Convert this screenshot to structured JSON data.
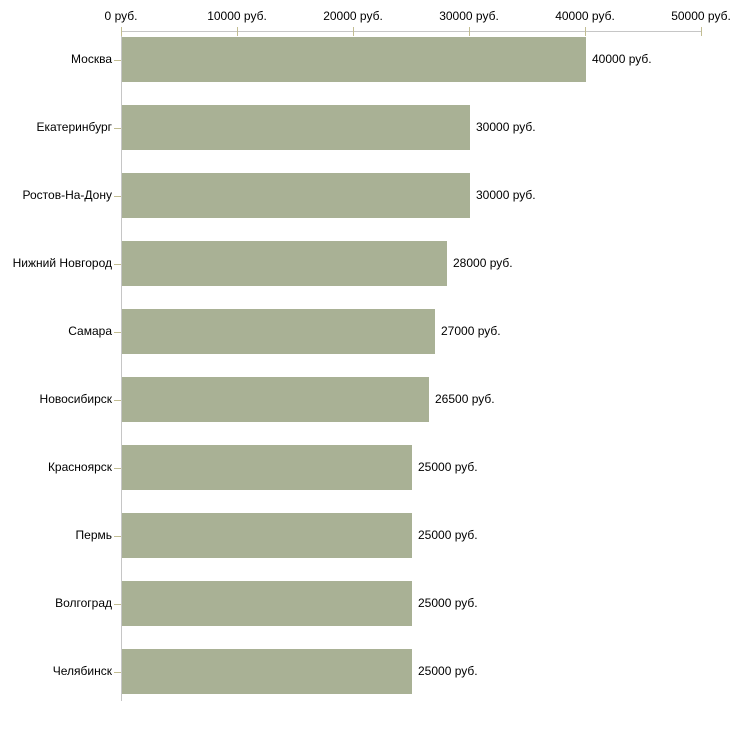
{
  "chart_data": {
    "type": "bar",
    "orientation": "horizontal",
    "title": "",
    "categories": [
      "Москва",
      "Екатеринбург",
      "Ростов-На-Дону",
      "Нижний Новгород",
      "Самара",
      "Новосибирск",
      "Красноярск",
      "Пермь",
      "Волгоград",
      "Челябинск"
    ],
    "values": [
      40000,
      30000,
      30000,
      28000,
      27000,
      26500,
      25000,
      25000,
      25000,
      25000
    ],
    "value_labels": [
      "40000 руб.",
      "30000 руб.",
      "30000 руб.",
      "28000 руб.",
      "27000 руб.",
      "26500 руб.",
      "25000 руб.",
      "25000 руб.",
      "25000 руб.",
      "25000 руб."
    ],
    "unit": "руб.",
    "xlabel": "",
    "ylabel": "",
    "xlim": [
      0,
      50000
    ],
    "x_ticks": [
      0,
      10000,
      20000,
      30000,
      40000,
      50000
    ],
    "x_tick_labels": [
      "0 руб.",
      "10000 руб.",
      "20000 руб.",
      "30000 руб.",
      "40000 руб.",
      "50000 руб."
    ],
    "x_axis_position": "top",
    "grid": false,
    "legend": false,
    "colors": {
      "bar": "#a9b195",
      "axis_line": "#c6c6c6",
      "tick_mark": "#c2bd92",
      "text": "#000000",
      "background": "#ffffff"
    }
  }
}
